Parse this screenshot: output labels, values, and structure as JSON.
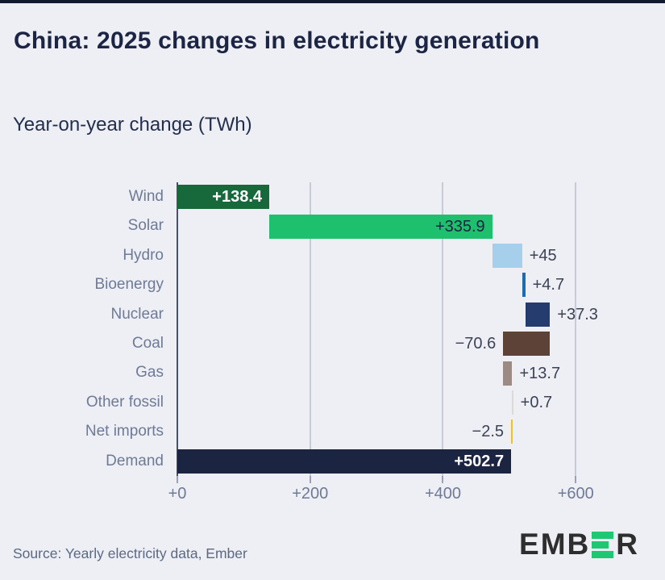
{
  "header": {
    "title": "China: 2025 changes in electricity generation",
    "subtitle": "Year-on-year change (TWh)"
  },
  "footer": {
    "source": "Source: Yearly electricity data, Ember",
    "logo_prefix": "EMB",
    "logo_suffix": "R",
    "logo_accent_color": "#1ec873"
  },
  "chart_data": {
    "type": "bar",
    "subtype": "horizontal-waterfall",
    "title": "China: 2025 changes in electricity generation",
    "xlabel": "Year-on-year change (TWh)",
    "categories": [
      "Wind",
      "Solar",
      "Hydro",
      "Bioenergy",
      "Nuclear",
      "Coal",
      "Gas",
      "Other fossil",
      "Net imports",
      "Demand"
    ],
    "values": [
      138.4,
      335.9,
      45,
      4.7,
      37.3,
      -70.6,
      13.7,
      0.7,
      -2.5,
      502.7
    ],
    "xlim": [
      0,
      692
    ],
    "grid": "vertical-gridlines-on",
    "legend": "none",
    "x_ticks": [
      {
        "value": 0,
        "label": "+0"
      },
      {
        "value": 200,
        "label": "+200"
      },
      {
        "value": 400,
        "label": "+400"
      },
      {
        "value": 600,
        "label": "+600"
      }
    ],
    "bars": [
      {
        "category": "Wind",
        "value": 138.4,
        "start": 0,
        "label": "+138.4",
        "color": "#17693c",
        "label_placement": "inside-right",
        "label_color": "#ffffff",
        "label_bold": true
      },
      {
        "category": "Solar",
        "value": 335.9,
        "start": 138.4,
        "label": "+335.9",
        "color": "#1ec06e",
        "label_placement": "inside-right",
        "label_color": "#1b2440",
        "label_bold": false
      },
      {
        "category": "Hydro",
        "value": 45,
        "start": 474.3,
        "label": "+45",
        "color": "#a5cfeb",
        "label_placement": "right",
        "label_color": "#3d4355",
        "label_bold": false
      },
      {
        "category": "Bioenergy",
        "value": 4.7,
        "start": 519.3,
        "label": "+4.7",
        "color": "#1b6cb3",
        "label_placement": "right",
        "label_color": "#3d4355",
        "label_bold": false
      },
      {
        "category": "Nuclear",
        "value": 37.3,
        "start": 524.0,
        "label": "+37.3",
        "color": "#253c6e",
        "label_placement": "right",
        "label_color": "#3d4355",
        "label_bold": false
      },
      {
        "category": "Coal",
        "value": -70.6,
        "start": 561.3,
        "label": "−70.6",
        "color": "#5c4237",
        "label_placement": "left",
        "label_color": "#3d4355",
        "label_bold": false
      },
      {
        "category": "Gas",
        "value": 13.7,
        "start": 490.7,
        "label": "+13.7",
        "color": "#9c8a84",
        "label_placement": "right",
        "label_color": "#3d4355",
        "label_bold": false
      },
      {
        "category": "Other fossil",
        "value": 0.7,
        "start": 504.4,
        "label": "+0.7",
        "color": "#dcd9d6",
        "label_placement": "right",
        "label_color": "#3d4355",
        "label_bold": false
      },
      {
        "category": "Net imports",
        "value": -2.5,
        "start": 505.1,
        "label": "−2.5",
        "color": "#f2c317",
        "label_placement": "left",
        "label_color": "#3d4355",
        "label_bold": false
      },
      {
        "category": "Demand",
        "value": 502.7,
        "start": 0,
        "label": "+502.7",
        "color": "#1b2440",
        "label_placement": "inside-right",
        "label_color": "#ffffff",
        "label_bold": true
      }
    ]
  }
}
